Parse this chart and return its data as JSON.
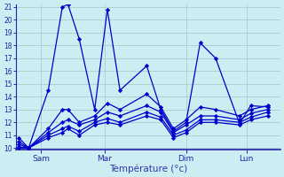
{
  "background_color": "#cceef2",
  "grid_color": "#aacccc",
  "line_color": "#0000cc",
  "xlabel": "Température (°c)",
  "xlabel_color": "#3333aa",
  "xtick_labels": [
    "Sam",
    "Mar",
    "Dim",
    "Lun"
  ],
  "ytick_min": 10,
  "ytick_max": 21,
  "x_min": -0.1,
  "x_max": 9.3,
  "xtick_positions": [
    0.8,
    3.05,
    5.95,
    8.1
  ],
  "series": [
    {
      "x": [
        0.0,
        0.35,
        1.05,
        1.55,
        1.75,
        2.15,
        2.7,
        3.15,
        3.6,
        4.55,
        5.05,
        5.5,
        5.95,
        6.45,
        7.0,
        7.85,
        8.25,
        8.85
      ],
      "y": [
        10.8,
        10.0,
        14.5,
        21.0,
        21.2,
        18.5,
        13.0,
        20.8,
        14.5,
        16.4,
        13.0,
        11.3,
        12.0,
        18.2,
        17.0,
        11.9,
        13.3,
        13.2
      ]
    },
    {
      "x": [
        0.0,
        0.35,
        1.05,
        1.55,
        1.75,
        2.15,
        2.7,
        3.15,
        3.6,
        4.55,
        5.05,
        5.5,
        5.95,
        6.45,
        7.0,
        7.85,
        8.25,
        8.85
      ],
      "y": [
        10.5,
        10.0,
        11.5,
        13.0,
        13.0,
        12.0,
        12.5,
        13.5,
        13.0,
        14.2,
        13.2,
        11.5,
        12.2,
        13.2,
        13.0,
        12.5,
        13.0,
        13.3
      ]
    },
    {
      "x": [
        0.0,
        0.35,
        1.05,
        1.55,
        1.75,
        2.15,
        2.7,
        3.15,
        3.6,
        4.55,
        5.05,
        5.5,
        5.95,
        6.45,
        7.0,
        7.85,
        8.25,
        8.85
      ],
      "y": [
        10.3,
        10.0,
        11.2,
        12.0,
        12.2,
        11.8,
        12.2,
        12.8,
        12.5,
        13.3,
        12.8,
        11.2,
        11.8,
        12.5,
        12.5,
        12.2,
        12.7,
        13.0
      ]
    },
    {
      "x": [
        0.0,
        0.35,
        1.05,
        1.55,
        1.75,
        2.15,
        2.7,
        3.15,
        3.6,
        4.55,
        5.05,
        5.5,
        5.95,
        6.45,
        7.0,
        7.85,
        8.25,
        8.85
      ],
      "y": [
        10.1,
        10.0,
        11.0,
        11.5,
        11.7,
        11.3,
        12.0,
        12.3,
        12.0,
        12.8,
        12.4,
        11.0,
        11.4,
        12.2,
        12.2,
        12.0,
        12.4,
        12.8
      ]
    },
    {
      "x": [
        0.0,
        0.35,
        1.05,
        1.55,
        1.75,
        2.15,
        2.7,
        3.15,
        3.6,
        4.55,
        5.05,
        5.5,
        5.95,
        6.45,
        7.0,
        7.85,
        8.25,
        8.85
      ],
      "y": [
        10.0,
        10.0,
        10.8,
        11.2,
        11.5,
        11.0,
        11.8,
        12.0,
        11.8,
        12.5,
        12.2,
        10.8,
        11.2,
        12.0,
        12.0,
        11.8,
        12.2,
        12.5
      ]
    }
  ]
}
